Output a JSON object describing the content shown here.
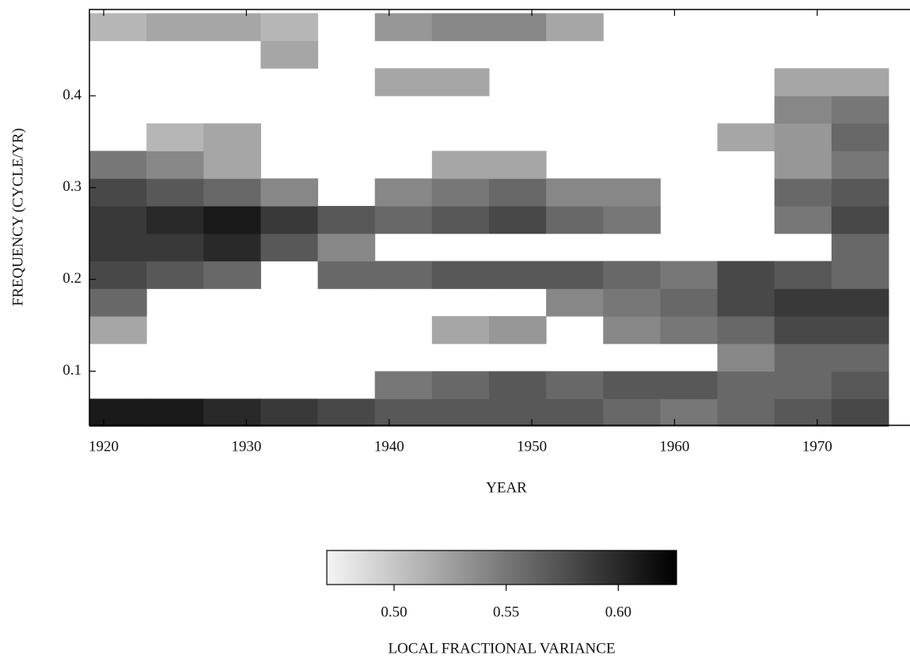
{
  "chart_data": {
    "type": "heatmap",
    "x_label": "YEAR",
    "y_label": "FREQUENCY (CYCLE/YR)",
    "colorbar_label": "LOCAL FRACTIONAL VARIANCE",
    "xlim": [
      1919,
      1976.5
    ],
    "ylim": [
      0.041,
      0.494
    ],
    "xticks": [
      1920,
      1930,
      1940,
      1950,
      1960,
      1970
    ],
    "yticks": [
      0.1,
      0.2,
      0.3,
      0.4
    ],
    "clim": [
      0.47,
      0.626
    ],
    "cticks": [
      {
        "value": 0.5,
        "label": "0.50"
      },
      {
        "value": 0.55,
        "label": "0.55"
      },
      {
        "value": 0.6,
        "label": "0.60"
      }
    ],
    "xbins": [
      1919,
      1923,
      1927,
      1931,
      1935,
      1939,
      1943,
      1947,
      1951,
      1955,
      1959,
      1963,
      1967,
      1971,
      1975
    ],
    "ybins": [
      0.04,
      0.07,
      0.1,
      0.13,
      0.16,
      0.19,
      0.22,
      0.25,
      0.28,
      0.31,
      0.34,
      0.37,
      0.4,
      0.43,
      0.46,
      0.49
    ],
    "values": [
      [
        0.61,
        0.61,
        0.6,
        0.59,
        0.58,
        0.57,
        0.57,
        0.57,
        0.57,
        0.56,
        0.55,
        0.56,
        0.57,
        0.58
      ],
      [
        null,
        null,
        null,
        null,
        null,
        0.55,
        0.56,
        0.57,
        0.56,
        0.57,
        0.57,
        0.56,
        0.56,
        0.57
      ],
      [
        null,
        null,
        null,
        null,
        null,
        null,
        null,
        null,
        null,
        null,
        null,
        0.54,
        0.56,
        0.56
      ],
      [
        0.52,
        null,
        null,
        null,
        null,
        null,
        0.52,
        0.53,
        null,
        0.54,
        0.55,
        0.56,
        0.58,
        0.58
      ],
      [
        0.56,
        null,
        null,
        null,
        null,
        null,
        null,
        null,
        0.54,
        0.55,
        0.56,
        0.58,
        0.59,
        0.59
      ],
      [
        0.58,
        0.57,
        0.56,
        null,
        0.56,
        0.56,
        0.57,
        0.57,
        0.57,
        0.56,
        0.55,
        0.58,
        0.57,
        0.56
      ],
      [
        0.59,
        0.59,
        0.6,
        0.57,
        0.54,
        null,
        null,
        null,
        null,
        null,
        null,
        null,
        null,
        0.56
      ],
      [
        0.59,
        0.6,
        0.61,
        0.59,
        0.57,
        0.56,
        0.57,
        0.58,
        0.56,
        0.55,
        null,
        null,
        0.55,
        0.58
      ],
      [
        0.58,
        0.57,
        0.56,
        0.54,
        null,
        0.54,
        0.55,
        0.56,
        0.54,
        0.54,
        null,
        null,
        0.56,
        0.57
      ],
      [
        0.55,
        0.54,
        0.52,
        null,
        null,
        null,
        0.52,
        0.52,
        null,
        null,
        null,
        null,
        0.53,
        0.55
      ],
      [
        null,
        0.51,
        0.52,
        null,
        null,
        null,
        null,
        null,
        null,
        null,
        null,
        0.52,
        0.53,
        0.56
      ],
      [
        null,
        null,
        null,
        null,
        null,
        null,
        null,
        null,
        null,
        null,
        null,
        null,
        0.54,
        0.55
      ],
      [
        null,
        null,
        null,
        null,
        null,
        0.52,
        0.52,
        null,
        null,
        null,
        null,
        null,
        0.52,
        0.52
      ],
      [
        null,
        null,
        null,
        0.52,
        null,
        null,
        null,
        null,
        null,
        null,
        null,
        null,
        null,
        null
      ],
      [
        0.51,
        0.52,
        0.52,
        0.51,
        null,
        0.53,
        0.54,
        0.54,
        0.52,
        null,
        null,
        null,
        null,
        null
      ]
    ]
  }
}
